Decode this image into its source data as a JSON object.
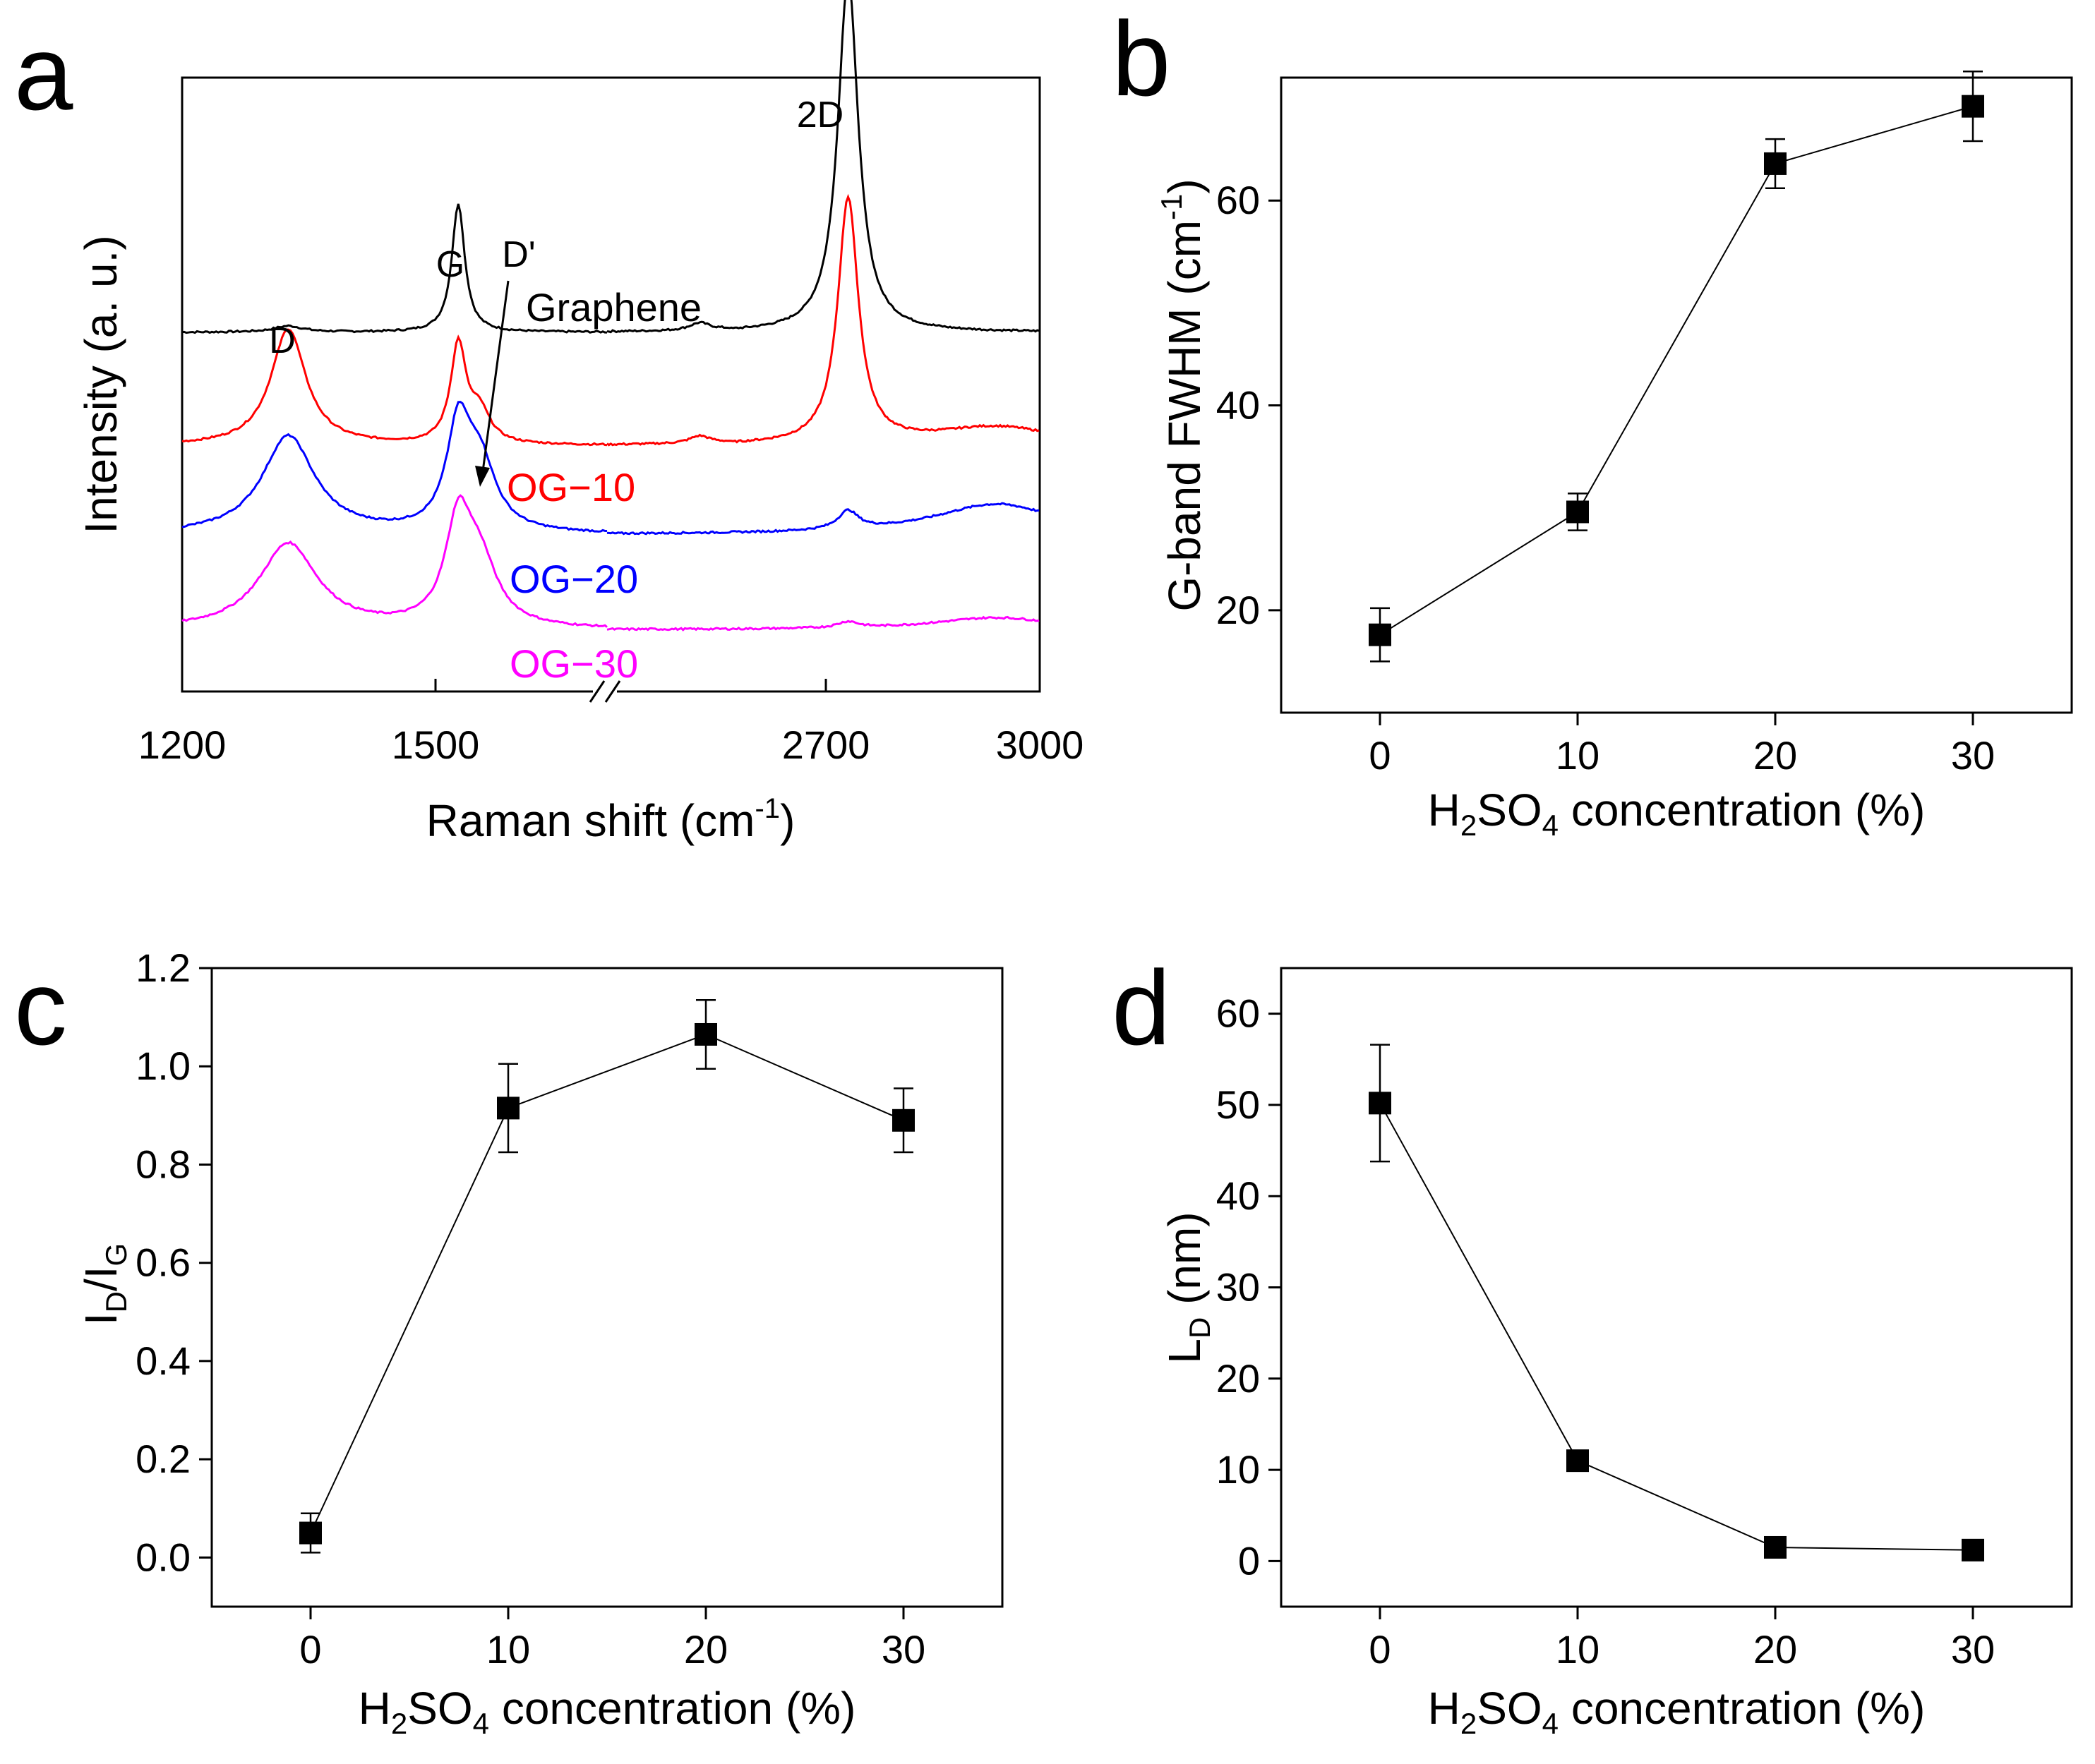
{
  "chart_data": [
    {
      "panel": "a",
      "type": "line",
      "title": "",
      "xlabel": "Raman shift (cm",
      "xlabel_sup": "-1",
      "xlabel_end": ")",
      "ylabel": "Intensity (a. u.)",
      "xlim": [
        1200,
        3000
      ],
      "axis_break": true,
      "xticks": [
        "1200",
        "1500",
        "2700",
        "3000"
      ],
      "peak_labels": [
        "D",
        "G",
        "D'",
        "2D"
      ],
      "series": [
        {
          "name": "Graphene",
          "color": "#000000",
          "offset": 0.585,
          "D": 0.01,
          "G": 0.21,
          "Dp": 0.0,
          "D2": 0.58,
          "bg": 0.0,
          "w": 1.0
        },
        {
          "name": "OG−10",
          "color": "#ff0000",
          "offset": 0.4,
          "D": 0.19,
          "G": 0.16,
          "Dp": 0.05,
          "D2": 0.4,
          "bg": 0.03,
          "w": 1.2
        },
        {
          "name": "OG−20",
          "color": "#0000ff",
          "offset": 0.255,
          "D": 0.16,
          "G": 0.16,
          "Dp": 0.11,
          "D2": 0.03,
          "bg": 0.05,
          "w": 1.8
        },
        {
          "name": "OG−30",
          "color": "#ff00ff",
          "offset": 0.1,
          "D": 0.14,
          "G": 0.16,
          "Dp": 0.1,
          "D2": 0.01,
          "bg": 0.02,
          "w": 2.0
        }
      ]
    },
    {
      "panel": "b",
      "type": "scatter",
      "title": "",
      "xlabel": "H2SO4 concentration (%)",
      "ylabel": "G-band FWHM (cm-1)",
      "xlim": [
        -5,
        35
      ],
      "ylim": [
        10,
        72
      ],
      "xticks": [
        0,
        10,
        20,
        30
      ],
      "yticks": [
        20,
        40,
        60
      ],
      "x": [
        0,
        10,
        20,
        30
      ],
      "y": [
        17.6,
        29.6,
        63.6,
        69.2
      ],
      "yerr": [
        2.6,
        1.8,
        2.4,
        3.4
      ]
    },
    {
      "panel": "c",
      "type": "scatter",
      "title": "",
      "xlabel": "H2SO4 concentration (%)",
      "ylabel": "ID/IG",
      "xlim": [
        -5,
        35
      ],
      "ylim": [
        -0.1,
        1.2
      ],
      "xticks": [
        0,
        10,
        20,
        30
      ],
      "yticks": [
        0.0,
        0.2,
        0.4,
        0.6,
        0.8,
        1.0,
        1.2
      ],
      "x": [
        0,
        10,
        20,
        30
      ],
      "y": [
        0.05,
        0.915,
        1.065,
        0.89
      ],
      "yerr": [
        0.04,
        0.09,
        0.07,
        0.065
      ]
    },
    {
      "panel": "d",
      "type": "scatter",
      "title": "",
      "xlabel": "H2SO4 concentration (%)",
      "ylabel": "LD (nm)",
      "xlim": [
        -5,
        35
      ],
      "ylim": [
        -5,
        65
      ],
      "xticks": [
        0,
        10,
        20,
        30
      ],
      "yticks": [
        0,
        10,
        20,
        30,
        40,
        50,
        60
      ],
      "x": [
        0,
        10,
        20,
        30
      ],
      "y": [
        50.2,
        11.0,
        1.5,
        1.2
      ],
      "yerr": [
        6.4,
        0,
        0,
        0
      ]
    }
  ],
  "labels": {
    "panel_a": "a",
    "panel_b": "b",
    "panel_c": "c",
    "panel_d": "d",
    "a_xlabel": "Raman shift (cm",
    "a_xlabel_sup": "-1",
    "a_xlabel_end": ")",
    "a_ylabel": "Intensity (a. u.)",
    "peak_D": "D",
    "peak_G": "G",
    "peak_Dp": "D'",
    "peak_2D": "2D",
    "graphene": "Graphene",
    "og10": "OG−10",
    "og20": "OG−20",
    "og30": "OG−30",
    "conc_pre": "H",
    "conc_sub1": "2",
    "conc_mid": "SO",
    "conc_sub2": "4",
    "conc_post": " concentration (%)",
    "b_ylabel_pre": "G-band FWHM (cm",
    "b_ylabel_sup": "-1",
    "b_ylabel_post": ")",
    "c_ylabel_I1": "I",
    "c_ylabel_D": "D",
    "c_ylabel_slash": "/I",
    "c_ylabel_G": "G",
    "d_ylabel_L": "L",
    "d_ylabel_D": "D",
    "d_ylabel_post": " (nm)"
  }
}
